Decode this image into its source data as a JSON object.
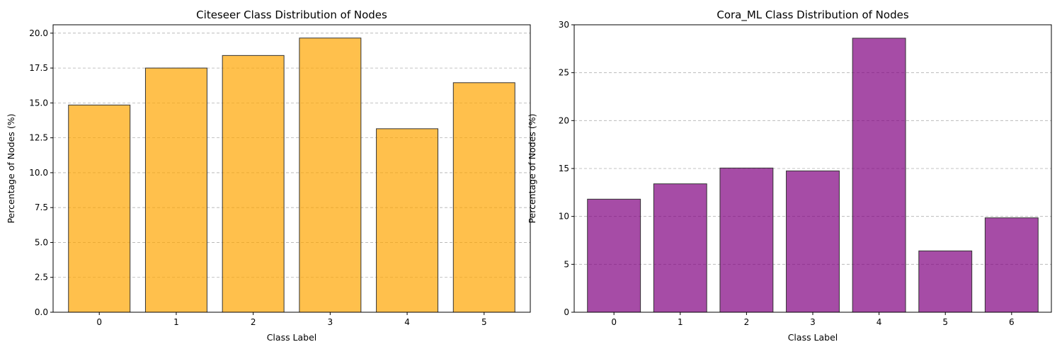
{
  "chart_data": [
    {
      "type": "bar",
      "title": "Citeseer Class Distribution of Nodes",
      "xlabel": "Class Label",
      "ylabel": "Percentage of Nodes (%)",
      "categories": [
        "0",
        "1",
        "2",
        "3",
        "4",
        "5"
      ],
      "values": [
        14.85,
        17.5,
        18.4,
        19.65,
        13.15,
        16.45
      ],
      "ylim": [
        0,
        20.6
      ],
      "yticks": [
        0.0,
        2.5,
        5.0,
        7.5,
        10.0,
        12.5,
        15.0,
        17.5,
        20.0
      ],
      "ytick_labels": [
        "0.0",
        "2.5",
        "5.0",
        "7.5",
        "10.0",
        "12.5",
        "15.0",
        "17.5",
        "20.0"
      ],
      "grid": "y",
      "bar_color": "#ffa500",
      "edge_color": "#333333"
    },
    {
      "type": "bar",
      "title": "Cora_ML Class Distribution of Nodes",
      "xlabel": "Class Label",
      "ylabel": "Percentage of Nodes (%)",
      "categories": [
        "0",
        "1",
        "2",
        "3",
        "4",
        "5",
        "6"
      ],
      "values": [
        11.8,
        13.4,
        15.05,
        14.75,
        28.6,
        6.4,
        9.85
      ],
      "ylim": [
        0,
        30
      ],
      "yticks": [
        0,
        5,
        10,
        15,
        20,
        25,
        30
      ],
      "ytick_labels": [
        "0",
        "5",
        "10",
        "15",
        "20",
        "25",
        "30"
      ],
      "grid": "y",
      "bar_color": "#800080",
      "edge_color": "#333333"
    }
  ]
}
